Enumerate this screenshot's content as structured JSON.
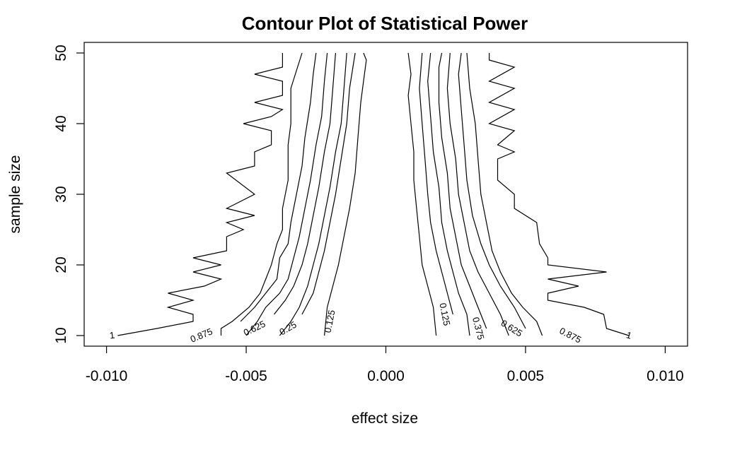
{
  "chart_data": {
    "type": "contour",
    "title": "Contour Plot of Statistical Power",
    "xlabel": "effect size",
    "ylabel": "sample size",
    "xlim": [
      -0.0108,
      0.0108
    ],
    "ylim": [
      8.5,
      51.5
    ],
    "x_ticks": [
      -0.01,
      -0.005,
      0.0,
      0.005,
      0.01
    ],
    "x_tick_labels": [
      "-0.010",
      "-0.005",
      "0.000",
      "0.005",
      "0.010"
    ],
    "y_ticks": [
      10,
      20,
      30,
      40,
      50
    ],
    "y_tick_labels": [
      "10",
      "20",
      "30",
      "40",
      "50"
    ],
    "grid": false,
    "legend": "none",
    "contours": [
      {
        "level": "1",
        "side": "left",
        "label": "1",
        "label_at": [
          -0.0098,
          10
        ],
        "points": [
          [
            -0.0096,
            10
          ],
          [
            -0.0082,
            11
          ],
          [
            -0.0069,
            12
          ],
          [
            -0.0069,
            13
          ],
          [
            -0.0078,
            14
          ],
          [
            -0.0069,
            15
          ],
          [
            -0.0078,
            16
          ],
          [
            -0.0065,
            17
          ],
          [
            -0.0059,
            18
          ],
          [
            -0.0069,
            19
          ],
          [
            -0.0059,
            20
          ],
          [
            -0.0069,
            21
          ],
          [
            -0.0057,
            22
          ],
          [
            -0.0057,
            24
          ],
          [
            -0.0051,
            25
          ],
          [
            -0.0057,
            26
          ],
          [
            -0.0047,
            27
          ],
          [
            -0.0057,
            28
          ],
          [
            -0.0047,
            30
          ],
          [
            -0.0057,
            33
          ],
          [
            -0.0047,
            34
          ],
          [
            -0.0047,
            36
          ],
          [
            -0.0041,
            37
          ],
          [
            -0.0041,
            39
          ],
          [
            -0.0051,
            40
          ],
          [
            -0.0041,
            41
          ],
          [
            -0.0037,
            42
          ],
          [
            -0.0047,
            43
          ],
          [
            -0.0037,
            44
          ],
          [
            -0.0037,
            46
          ],
          [
            -0.0047,
            47
          ],
          [
            -0.0037,
            48
          ],
          [
            -0.0037,
            50
          ]
        ]
      },
      {
        "level": "0.875",
        "side": "left",
        "label": "0.875",
        "label_at": [
          -0.0066,
          10
        ],
        "points": [
          [
            -0.0059,
            10
          ],
          [
            -0.0059,
            11
          ],
          [
            -0.0055,
            12
          ],
          [
            -0.0049,
            14
          ],
          [
            -0.0045,
            16
          ],
          [
            -0.0043,
            18
          ],
          [
            -0.0041,
            20
          ],
          [
            -0.0039,
            23
          ],
          [
            -0.0037,
            25
          ],
          [
            -0.0037,
            28
          ],
          [
            -0.0035,
            32
          ],
          [
            -0.0035,
            37
          ],
          [
            -0.0034,
            40
          ],
          [
            -0.0034,
            45
          ],
          [
            -0.003,
            50
          ]
        ]
      },
      {
        "level": "0.75",
        "side": "left",
        "label": "",
        "label_at": null,
        "points": [
          [
            -0.0052,
            12
          ],
          [
            -0.0047,
            14
          ],
          [
            -0.0043,
            16
          ],
          [
            -0.0039,
            18
          ],
          [
            -0.0038,
            21
          ],
          [
            -0.0035,
            23
          ],
          [
            -0.0034,
            26
          ],
          [
            -0.0032,
            30
          ],
          [
            -0.003,
            34
          ],
          [
            -0.0029,
            38
          ],
          [
            -0.0027,
            43
          ],
          [
            -0.0026,
            47
          ],
          [
            -0.0025,
            50
          ]
        ]
      },
      {
        "level": "0.625",
        "side": "left",
        "label": "0.625",
        "label_at": [
          -0.0047,
          11
        ],
        "points": [
          [
            -0.005,
            10
          ],
          [
            -0.0046,
            12
          ],
          [
            -0.0043,
            14
          ],
          [
            -0.0038,
            16
          ],
          [
            -0.0035,
            18
          ],
          [
            -0.0033,
            21
          ],
          [
            -0.0031,
            24
          ],
          [
            -0.0029,
            28
          ],
          [
            -0.0027,
            32
          ],
          [
            -0.0025,
            37
          ],
          [
            -0.0023,
            41
          ],
          [
            -0.0022,
            46
          ],
          [
            -0.0021,
            50
          ]
        ]
      },
      {
        "level": "0.5",
        "side": "left",
        "label": "",
        "label_at": null,
        "points": [
          [
            -0.004,
            13
          ],
          [
            -0.0036,
            15
          ],
          [
            -0.0033,
            17
          ],
          [
            -0.003,
            20
          ],
          [
            -0.0028,
            23
          ],
          [
            -0.0026,
            27
          ],
          [
            -0.0024,
            31
          ],
          [
            -0.0022,
            36
          ],
          [
            -0.002,
            40
          ],
          [
            -0.0019,
            45
          ],
          [
            -0.0018,
            50
          ]
        ]
      },
      {
        "level": "0.25",
        "side": "left",
        "label": "0.25",
        "label_at": [
          -0.0035,
          11
        ],
        "points": [
          [
            -0.0038,
            10
          ],
          [
            -0.0034,
            12
          ],
          [
            -0.0031,
            14
          ],
          [
            -0.0028,
            17
          ],
          [
            -0.0026,
            20
          ],
          [
            -0.0024,
            23
          ],
          [
            -0.0022,
            27
          ],
          [
            -0.002,
            31
          ],
          [
            -0.0018,
            36
          ],
          [
            -0.0016,
            40
          ],
          [
            -0.0015,
            45
          ],
          [
            -0.0014,
            50
          ]
        ]
      },
      {
        "level": "0.375",
        "side": "left",
        "label": "",
        "label_at": null,
        "points": [
          [
            -0.003,
            13
          ],
          [
            -0.0026,
            16
          ],
          [
            -0.0024,
            19
          ],
          [
            -0.0022,
            22
          ],
          [
            -0.002,
            26
          ],
          [
            -0.0018,
            30
          ],
          [
            -0.0016,
            35
          ],
          [
            -0.0014,
            40
          ],
          [
            -0.0013,
            45
          ],
          [
            -0.0011,
            50
          ]
        ]
      },
      {
        "level": "0.125",
        "side": "left",
        "label": "0.125",
        "label_at": [
          -0.002,
          12
        ],
        "points": [
          [
            -0.0022,
            10
          ],
          [
            -0.0021,
            14
          ],
          [
            -0.0019,
            17
          ],
          [
            -0.0017,
            20
          ],
          [
            -0.0015,
            24
          ],
          [
            -0.0013,
            28
          ],
          [
            -0.0011,
            33
          ],
          [
            -0.001,
            38
          ],
          [
            -0.0009,
            43
          ],
          [
            -0.0008,
            46
          ],
          [
            -0.0007,
            49
          ],
          [
            -0.0008,
            50
          ]
        ]
      },
      {
        "level": "0.125",
        "side": "right",
        "label": "0.125",
        "label_at": [
          0.0021,
          13
        ],
        "points": [
          [
            0.0018,
            10
          ],
          [
            0.0017,
            14
          ],
          [
            0.0015,
            17
          ],
          [
            0.0013,
            20
          ],
          [
            0.0012,
            24
          ],
          [
            0.0011,
            28
          ],
          [
            0.001,
            32
          ],
          [
            0.001,
            36
          ],
          [
            0.0009,
            40
          ],
          [
            0.0008,
            44
          ],
          [
            0.0009,
            47
          ],
          [
            0.0008,
            50
          ]
        ]
      },
      {
        "level": "0.25",
        "side": "right",
        "label": "",
        "label_at": null,
        "points": [
          [
            0.0024,
            13
          ],
          [
            0.0022,
            16
          ],
          [
            0.002,
            19
          ],
          [
            0.0018,
            22
          ],
          [
            0.0016,
            26
          ],
          [
            0.0015,
            30
          ],
          [
            0.0014,
            35
          ],
          [
            0.0013,
            40
          ],
          [
            0.0012,
            45
          ],
          [
            0.0013,
            50
          ]
        ]
      },
      {
        "level": "0.375",
        "side": "right",
        "label": "0.375",
        "label_at": [
          0.0033,
          11
        ],
        "points": [
          [
            0.003,
            10
          ],
          [
            0.0029,
            13
          ],
          [
            0.0026,
            16
          ],
          [
            0.0024,
            19
          ],
          [
            0.0022,
            22
          ],
          [
            0.002,
            26
          ],
          [
            0.0019,
            31
          ],
          [
            0.0017,
            36
          ],
          [
            0.0016,
            41
          ],
          [
            0.0015,
            46
          ],
          [
            0.0016,
            50
          ]
        ]
      },
      {
        "level": "0.5",
        "side": "right",
        "label": "",
        "label_at": null,
        "points": [
          [
            0.0036,
            11
          ],
          [
            0.0033,
            14
          ],
          [
            0.003,
            17
          ],
          [
            0.0027,
            20
          ],
          [
            0.0025,
            24
          ],
          [
            0.0023,
            28
          ],
          [
            0.0022,
            33
          ],
          [
            0.002,
            38
          ],
          [
            0.0019,
            43
          ],
          [
            0.0019,
            48
          ],
          [
            0.002,
            50
          ]
        ]
      },
      {
        "level": "0.625",
        "side": "right",
        "label": "0.625",
        "label_at": [
          0.0045,
          11
        ],
        "points": [
          [
            0.0044,
            10
          ],
          [
            0.0041,
            13
          ],
          [
            0.0037,
            16
          ],
          [
            0.0033,
            19
          ],
          [
            0.003,
            22
          ],
          [
            0.0028,
            26
          ],
          [
            0.0026,
            30
          ],
          [
            0.0025,
            35
          ],
          [
            0.0023,
            40
          ],
          [
            0.0022,
            45
          ],
          [
            0.0023,
            50
          ]
        ]
      },
      {
        "level": "0.75",
        "side": "right",
        "label": "",
        "label_at": null,
        "points": [
          [
            0.005,
            11
          ],
          [
            0.0046,
            14
          ],
          [
            0.0041,
            17
          ],
          [
            0.0037,
            20
          ],
          [
            0.0034,
            23
          ],
          [
            0.0031,
            27
          ],
          [
            0.0029,
            32
          ],
          [
            0.0028,
            37
          ],
          [
            0.0027,
            42
          ],
          [
            0.0026,
            47
          ],
          [
            0.0027,
            50
          ]
        ]
      },
      {
        "level": "0.875",
        "side": "right",
        "label": "0.875",
        "label_at": [
          0.0066,
          10
        ],
        "points": [
          [
            0.0056,
            10
          ],
          [
            0.0054,
            12
          ],
          [
            0.0049,
            14
          ],
          [
            0.0045,
            16
          ],
          [
            0.0041,
            19
          ],
          [
            0.0038,
            22
          ],
          [
            0.0036,
            26
          ],
          [
            0.0034,
            30
          ],
          [
            0.0033,
            35
          ],
          [
            0.0032,
            40
          ],
          [
            0.003,
            45
          ],
          [
            0.0029,
            50
          ]
        ]
      },
      {
        "level": "1",
        "side": "right",
        "label": "1",
        "label_at": [
          0.0087,
          10
        ],
        "points": [
          [
            0.0087,
            10
          ],
          [
            0.0079,
            11
          ],
          [
            0.0078,
            13
          ],
          [
            0.0071,
            14
          ],
          [
            0.0058,
            15
          ],
          [
            0.0058,
            16
          ],
          [
            0.0069,
            17
          ],
          [
            0.0058,
            18
          ],
          [
            0.0079,
            19
          ],
          [
            0.0058,
            20
          ],
          [
            0.0058,
            21
          ],
          [
            0.0055,
            23
          ],
          [
            0.0054,
            26
          ],
          [
            0.0046,
            28
          ],
          [
            0.0046,
            30
          ],
          [
            0.004,
            32
          ],
          [
            0.004,
            35
          ],
          [
            0.0046,
            36
          ],
          [
            0.004,
            37
          ],
          [
            0.0046,
            39
          ],
          [
            0.0037,
            40
          ],
          [
            0.0046,
            42
          ],
          [
            0.0037,
            43
          ],
          [
            0.0046,
            45
          ],
          [
            0.0037,
            46
          ],
          [
            0.0046,
            48
          ],
          [
            0.0037,
            49
          ],
          [
            0.0037,
            50
          ]
        ]
      }
    ]
  }
}
